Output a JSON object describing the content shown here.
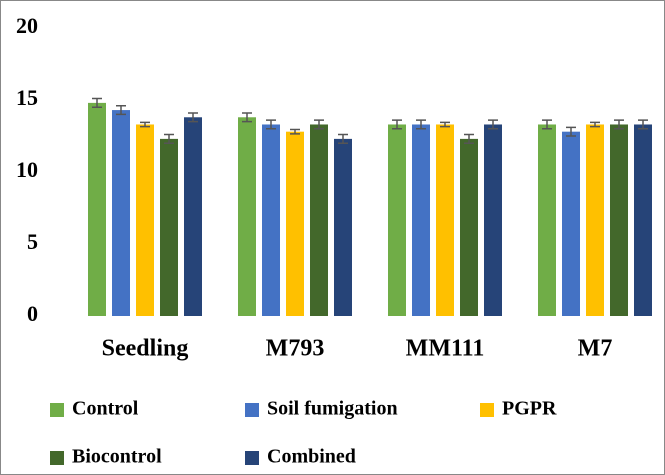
{
  "chart_data": {
    "type": "bar",
    "categories": [
      "Seedling",
      "M793",
      "MM111",
      "M7"
    ],
    "series": [
      {
        "name": "Control",
        "color": "#70ad47",
        "values": [
          14.8,
          13.8,
          13.3,
          13.3
        ],
        "errors": [
          0.3,
          0.3,
          0.3,
          0.3
        ]
      },
      {
        "name": "Soil fumigation",
        "color": "#4472c4",
        "values": [
          14.3,
          13.3,
          13.3,
          12.8
        ],
        "errors": [
          0.3,
          0.3,
          0.3,
          0.3
        ]
      },
      {
        "name": "PGPR",
        "color": "#ffc000",
        "values": [
          13.3,
          12.8,
          13.3,
          13.3
        ],
        "errors": [
          0.15,
          0.15,
          0.15,
          0.15
        ]
      },
      {
        "name": "Biocontrol",
        "color": "#43682b",
        "values": [
          12.3,
          13.3,
          12.3,
          13.3
        ],
        "errors": [
          0.3,
          0.3,
          0.3,
          0.3
        ]
      },
      {
        "name": "Combined",
        "color": "#264478",
        "values": [
          13.8,
          12.3,
          13.3,
          13.3
        ],
        "errors": [
          0.3,
          0.3,
          0.3,
          0.3
        ]
      }
    ],
    "ylim": [
      0,
      20
    ],
    "yticks": [
      0,
      5,
      10,
      15,
      20
    ],
    "grid": false,
    "legend": "bottom"
  }
}
